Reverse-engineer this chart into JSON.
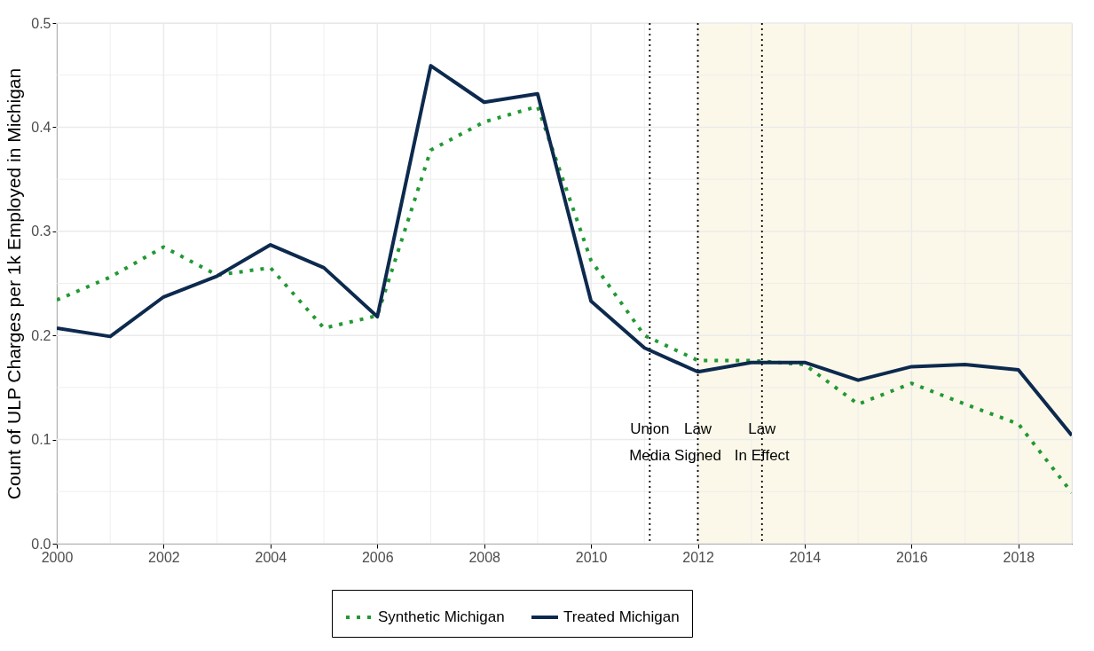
{
  "chart_data": {
    "type": "line",
    "ylabel": "Count of ULP Charges per 1k Employed in Michigan",
    "x": [
      2000,
      2001,
      2002,
      2003,
      2004,
      2005,
      2006,
      2007,
      2008,
      2009,
      2010,
      2011,
      2012,
      2013,
      2014,
      2015,
      2016,
      2017,
      2018,
      2019
    ],
    "series": [
      {
        "name": "Synthetic Michigan",
        "color": "#229933",
        "line_style": "dotted",
        "values": [
          0.234,
          0.256,
          0.285,
          0.258,
          0.265,
          0.207,
          0.219,
          0.378,
          0.405,
          0.42,
          0.272,
          0.2,
          0.176,
          0.176,
          0.172,
          0.134,
          0.154,
          0.134,
          0.115,
          0.049
        ]
      },
      {
        "name": "Treated Michigan",
        "color": "#0d2a4e",
        "line_style": "solid",
        "values": [
          0.207,
          0.199,
          0.237,
          0.257,
          0.287,
          0.265,
          0.218,
          0.459,
          0.424,
          0.432,
          0.233,
          0.188,
          0.165,
          0.174,
          0.174,
          0.157,
          0.17,
          0.172,
          0.167,
          0.104
        ]
      }
    ],
    "xlim": [
      2000,
      2019
    ],
    "xticks": [
      2000,
      2002,
      2004,
      2006,
      2008,
      2010,
      2012,
      2014,
      2016,
      2018
    ],
    "ylim": [
      0,
      0.5
    ],
    "yticks": [
      {
        "value": 0,
        "label": "0.0"
      },
      0.1,
      0.2,
      0.3,
      0.4,
      0.5
    ],
    "ref_lines": [
      {
        "axis": "x",
        "value": 2011.1,
        "label": "Union\nMedia",
        "line_style": "dotted",
        "color": "#000000"
      },
      {
        "axis": "x",
        "value": 2012,
        "label": "Law\nSigned",
        "line_style": "dotted",
        "color": "#000000"
      },
      {
        "axis": "x",
        "value": 2013.2,
        "label": "Law\nIn Effect",
        "line_style": "dotted",
        "color": "#000000"
      }
    ],
    "bands": [
      {
        "axis": "x",
        "from": 2012,
        "to": 2019,
        "color": "#faf6e3"
      }
    ],
    "grid": true,
    "legend": "bottom"
  }
}
